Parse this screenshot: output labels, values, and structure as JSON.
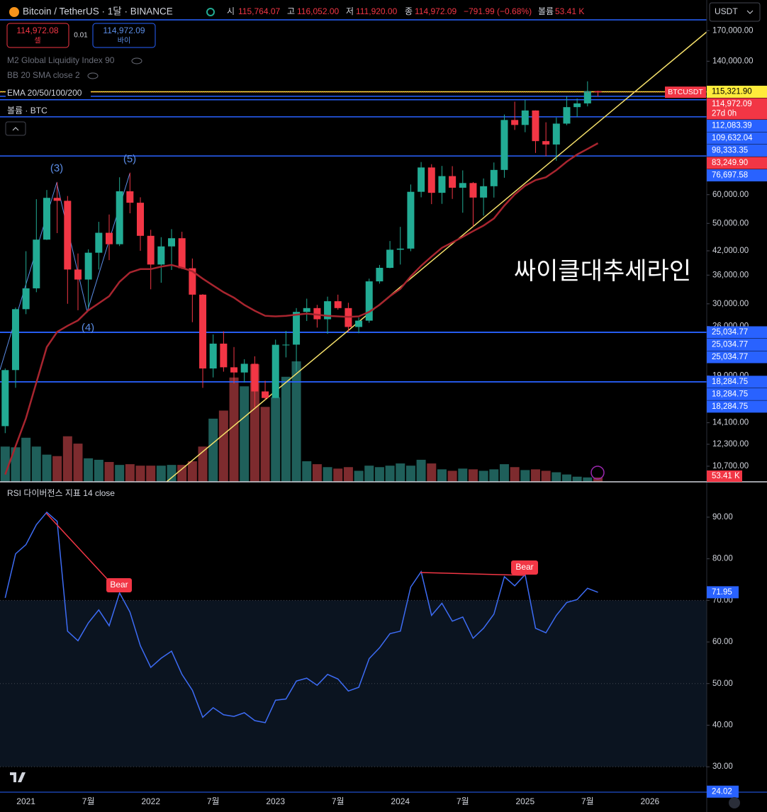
{
  "header": {
    "title": "Bitcoin / TetherUS · 1달 · BINANCE",
    "open_label": "시",
    "open": "115,764.07",
    "high_label": "고",
    "high": "116,052.00",
    "low_label": "저",
    "low": "111,920.00",
    "close_label": "종",
    "close": "114,972.09",
    "change": "−791.99 (−0.68%)",
    "volume_label": "볼륨",
    "volume": "53.41 K",
    "currency": "USDT",
    "sell_price": "114,972.08",
    "sell_label": "셀",
    "spread": "0.01",
    "buy_price": "114,972.09",
    "buy_label": "바이"
  },
  "indicators": [
    "M2 Global Liquidity Index 90",
    "BB 20 SMA close 2",
    "EMA 20/50/100/200",
    "볼륨 · BTC"
  ],
  "annotations": {
    "wave3": "(3)",
    "wave4": "(4)",
    "wave5": "(5)",
    "trendline": "싸이클대추세라인",
    "bear1": "Bear",
    "bear2": "Bear"
  },
  "chart_data": [
    {
      "type": "candlestick",
      "up_color": "#22ab94",
      "down_color": "#f23645",
      "volume_up_color": "#1f5f5a",
      "volume_down_color": "#7d2b2e",
      "categories": [
        null,
        null,
        "2021",
        null,
        null,
        null,
        null,
        null,
        "7월",
        null,
        null,
        null,
        null,
        null,
        "2022",
        null,
        null,
        null,
        null,
        null,
        "7월",
        null,
        null,
        null,
        null,
        null,
        "2023",
        null,
        null,
        null,
        null,
        null,
        "7월",
        null,
        null,
        null,
        null,
        null,
        "2024",
        null,
        null,
        null,
        null,
        null,
        "7월",
        null,
        null,
        null,
        null,
        null,
        "2025",
        null,
        null,
        null,
        null,
        null,
        "7월",
        null,
        null,
        null,
        null,
        null,
        "2026"
      ],
      "open": [
        13800,
        19700,
        29000,
        33100,
        45100,
        58800,
        57700,
        37300,
        35000,
        41500,
        47100,
        43800,
        61300,
        57000,
        46200,
        38500,
        43200,
        45500,
        37600,
        31800,
        19900,
        23300,
        20050,
        19400,
        20500,
        17200,
        16500,
        23130,
        23150,
        28500,
        29200,
        27200,
        30500,
        29200,
        25900,
        26960,
        34600,
        37700,
        42300,
        42600,
        61100,
        71300,
        60700,
        67500,
        62700,
        64600,
        58900,
        63300,
        70200,
        96400,
        93400,
        102400,
        84300,
        82500,
        94200,
        104600,
        107100,
        115764.07,
        null,
        null,
        null,
        null,
        null
      ],
      "high": [
        19900,
        29300,
        41900,
        58300,
        61800,
        64900,
        59500,
        41300,
        42400,
        50500,
        52900,
        67000,
        69000,
        59000,
        48000,
        45800,
        48200,
        47400,
        40000,
        31900,
        24700,
        25200,
        22800,
        21100,
        21500,
        18400,
        23900,
        25250,
        29200,
        31000,
        29800,
        31400,
        31800,
        30200,
        27500,
        35200,
        38400,
        44700,
        48900,
        64000,
        73800,
        72800,
        72000,
        71900,
        70000,
        65000,
        66500,
        73600,
        99800,
        108300,
        109600,
        102500,
        95000,
        97900,
        111900,
        110500,
        123218,
        116052,
        null,
        null,
        null,
        null,
        null
      ],
      "low": [
        13200,
        17600,
        28100,
        32300,
        45000,
        47000,
        30000,
        28800,
        29300,
        37300,
        39600,
        43300,
        53300,
        42000,
        32900,
        34300,
        37200,
        37400,
        26700,
        17600,
        18800,
        19500,
        18100,
        18200,
        15500,
        16300,
        16500,
        21350,
        19500,
        26900,
        25800,
        24800,
        28900,
        25100,
        24900,
        26600,
        34100,
        37600,
        38500,
        41900,
        59000,
        56500,
        56600,
        58400,
        53500,
        49000,
        52500,
        58900,
        66800,
        90500,
        89200,
        78200,
        76600,
        74400,
        93300,
        98200,
        105100,
        111920,
        null,
        null,
        null,
        null,
        null
      ],
      "close": [
        19700,
        29000,
        33100,
        45100,
        58800,
        57700,
        37300,
        35000,
        41500,
        47100,
        43800,
        61300,
        57000,
        46200,
        38500,
        43200,
        45500,
        37600,
        31800,
        19900,
        23300,
        20050,
        19400,
        20500,
        17200,
        16500,
        23130,
        23150,
        28500,
        29200,
        27200,
        30500,
        29200,
        25900,
        26960,
        34600,
        37700,
        42300,
        42600,
        61100,
        71300,
        60700,
        67500,
        62700,
        64600,
        58900,
        63300,
        70200,
        96400,
        93400,
        102400,
        84300,
        82500,
        94200,
        104600,
        107100,
        115764.07,
        114972.09,
        null,
        null,
        null,
        null,
        null
      ],
      "volume": [
        432,
        423,
        540,
        432,
        333,
        315,
        558,
        468,
        288,
        270,
        243,
        207,
        216,
        198,
        198,
        198,
        207,
        207,
        252,
        432,
        774,
        873,
        1278,
        1170,
        1440,
        918,
        1035,
        1287,
        1476,
        252,
        216,
        180,
        162,
        180,
        135,
        198,
        180,
        198,
        225,
        198,
        270,
        225,
        153,
        135,
        162,
        153,
        135,
        153,
        216,
        180,
        144,
        153,
        135,
        117,
        90,
        63,
        54,
        53.41,
        null,
        null,
        null,
        null,
        null
      ],
      "volume_last_label": "53.41 K",
      "ema": {
        "color": "#a8252f",
        "values": [
          10150,
          12150,
          14500,
          18200,
          22800,
          25100,
          26100,
          27000,
          28800,
          30100,
          31500,
          34500,
          36600,
          37400,
          37400,
          38000,
          38400,
          37700,
          36900,
          35200,
          33700,
          32300,
          31200,
          29800,
          28700,
          27800,
          27700,
          27800,
          28000,
          28200,
          28000,
          27800,
          27700,
          27600,
          27700,
          28500,
          29800,
          31500,
          33000,
          35700,
          38200,
          40500,
          42800,
          44300,
          45900,
          47600,
          49300,
          51600,
          56000,
          60100,
          63500,
          65800,
          67000,
          70100,
          74000,
          77400,
          80200,
          83200,
          null,
          null,
          null,
          null,
          null
        ]
      },
      "log_scale": true,
      "ylim": [
        9690,
        206500
      ],
      "yticks": [
        {
          "value": 170000,
          "label": "170,000.00"
        },
        {
          "value": 140000,
          "label": "140,000.00"
        },
        {
          "value": 60000,
          "label": "60,000.00"
        },
        {
          "value": 50000,
          "label": "50,000.00"
        },
        {
          "value": 42000,
          "label": "42,000.00"
        },
        {
          "value": 36000,
          "label": "36,000.00"
        },
        {
          "value": 30000,
          "label": "30,000.00"
        },
        {
          "value": 26000,
          "label": "26,000.00"
        },
        {
          "value": 19000,
          "label": "19,000.00"
        },
        {
          "value": 14100,
          "label": "14,100.00"
        },
        {
          "value": 12300,
          "label": "12,300.00"
        },
        {
          "value": 10700,
          "label": "10,700.00"
        }
      ],
      "symbol_tag": "BTCUSDT",
      "countdown": "27d 0h",
      "price_tags": [
        {
          "value": 115321.9,
          "label": "115,321.90",
          "color": "#ffeb3b",
          "text_color": "#000000",
          "line": true
        },
        {
          "value": 114972.09,
          "label": "114,972.09",
          "color": "#f23645",
          "text_color": "#ffffff",
          "line": false
        },
        {
          "value": 112083.39,
          "label": "112,083.39",
          "color": "#2962ff",
          "text_color": "#ffffff",
          "line": true
        },
        {
          "value": 109632.04,
          "label": "109,632.04",
          "color": "#2962ff",
          "text_color": "#ffffff",
          "line": true
        },
        {
          "value": 98333.35,
          "label": "98,333.35",
          "color": "#2962ff",
          "text_color": "#ffffff",
          "line": true
        },
        {
          "value": 83249.9,
          "label": "83,249.90",
          "color": "#f23645",
          "text_color": "#ffffff",
          "line": false
        },
        {
          "value": 76697.58,
          "label": "76,697.58",
          "color": "#2962ff",
          "text_color": "#ffffff",
          "line": true
        },
        {
          "value": 25034.77,
          "label": "25,034.77",
          "color": "#2962ff",
          "text_color": "#ffffff",
          "line": true
        },
        {
          "value": 25034.77,
          "label": "25,034.77",
          "color": "#2962ff",
          "text_color": "#ffffff",
          "line": true
        },
        {
          "value": 25034.77,
          "label": "25,034.77",
          "color": "#2962ff",
          "text_color": "#ffffff",
          "line": true
        },
        {
          "value": 18284.75,
          "label": "18,284.75",
          "color": "#2962ff",
          "text_color": "#ffffff",
          "line": true
        },
        {
          "value": 18284.75,
          "label": "18,284.75",
          "color": "#2962ff",
          "text_color": "#ffffff",
          "line": true
        },
        {
          "value": 18284.75,
          "label": "18,284.75",
          "color": "#2962ff",
          "text_color": "#ffffff",
          "line": true
        }
      ]
    },
    {
      "type": "line",
      "title": "RSI 다이버전스 지표 14 close",
      "color": "#3d6cf5",
      "values": [
        70.6,
        81.2,
        83.4,
        88.2,
        91.2,
        89.0,
        62.6,
        60.3,
        64.6,
        67.7,
        63.9,
        71.8,
        67.2,
        59.1,
        53.9,
        56.1,
        57.8,
        52.2,
        48.4,
        41.9,
        44.2,
        42.5,
        42.1,
        43.0,
        41.1,
        40.6,
        46.0,
        46.3,
        50.6,
        51.3,
        49.6,
        52.2,
        51.1,
        48.2,
        49.1,
        56.0,
        58.6,
        62.0,
        62.6,
        73.2,
        76.9,
        66.4,
        69.3,
        65.0,
        66.0,
        60.9,
        63.3,
        66.7,
        75.7,
        73.5,
        76.2,
        63.3,
        62.2,
        66.4,
        69.5,
        70.2,
        72.9,
        71.95,
        null,
        null,
        null,
        null,
        null
      ],
      "last_value_label": "71.95",
      "ylim": [
        23.9,
        98.5
      ],
      "yticks": [
        {
          "value": 90,
          "label": "90.00"
        },
        {
          "value": 80,
          "label": "80.00"
        },
        {
          "value": 70,
          "label": "70.00"
        },
        {
          "value": 60,
          "label": "60.00"
        },
        {
          "value": 50,
          "label": "50.00"
        },
        {
          "value": 40,
          "label": "40.00"
        },
        {
          "value": 30,
          "label": "30.00"
        }
      ],
      "band": {
        "from": 30,
        "to": 70,
        "color": "#0b1420"
      },
      "guide_lines": [
        70,
        50,
        30
      ],
      "levels": [
        {
          "value": 24.02,
          "label": "24.02",
          "color": "#2962ff"
        }
      ]
    }
  ]
}
